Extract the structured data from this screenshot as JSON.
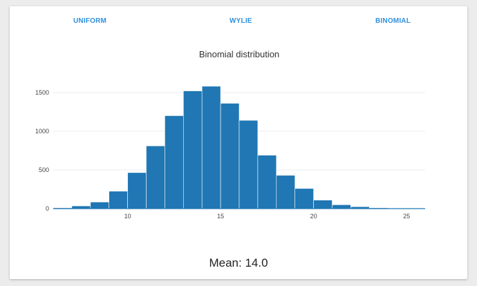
{
  "tabs": [
    {
      "label": "UNIFORM"
    },
    {
      "label": "WYLIE"
    },
    {
      "label": "BINOMIAL"
    }
  ],
  "colors": {
    "accent": "#2f8fdd",
    "bar": "#2077b4",
    "grid": "#eeeeee"
  },
  "footer": {
    "mean_label": "Mean:",
    "mean_value": "14.0"
  },
  "chart_data": {
    "type": "bar",
    "title": "Binomial distribution",
    "xlabel": "",
    "ylabel": "",
    "xlim": [
      6,
      26
    ],
    "ylim": [
      0,
      1650
    ],
    "xticks": [
      10,
      15,
      20,
      25
    ],
    "yticks": [
      0,
      500,
      1000,
      1500
    ],
    "grid": true,
    "bin_width": 1,
    "bin_starts": [
      6,
      7,
      8,
      9,
      10,
      11,
      12,
      13,
      14,
      15,
      16,
      17,
      18,
      19,
      20,
      21,
      22,
      23,
      24,
      25
    ],
    "values": [
      10,
      35,
      85,
      225,
      465,
      810,
      1200,
      1520,
      1580,
      1360,
      1140,
      690,
      430,
      260,
      110,
      50,
      25,
      10,
      5,
      2
    ]
  }
}
